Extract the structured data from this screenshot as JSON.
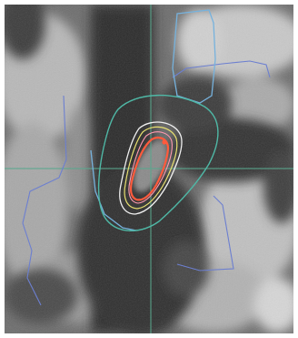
{
  "image": {
    "kind": "grayscale medical scan with contour overlays",
    "crosshair_color": "#5aa88e"
  },
  "contours": [
    {
      "name": "outer-field-contour",
      "color": "#4fb8a6"
    },
    {
      "name": "inner-target-contour",
      "color": "#ff5a3c"
    },
    {
      "name": "isodose-line-yellow",
      "color": "#e8e070"
    },
    {
      "name": "isodose-line-white",
      "color": "#f0f0f0"
    },
    {
      "name": "isodose-line-pink",
      "color": "#ff9ab0"
    },
    {
      "name": "structure-outline-blue",
      "color": "#6c7fd0"
    },
    {
      "name": "structure-outline-cyan",
      "color": "#76b2dd"
    }
  ]
}
